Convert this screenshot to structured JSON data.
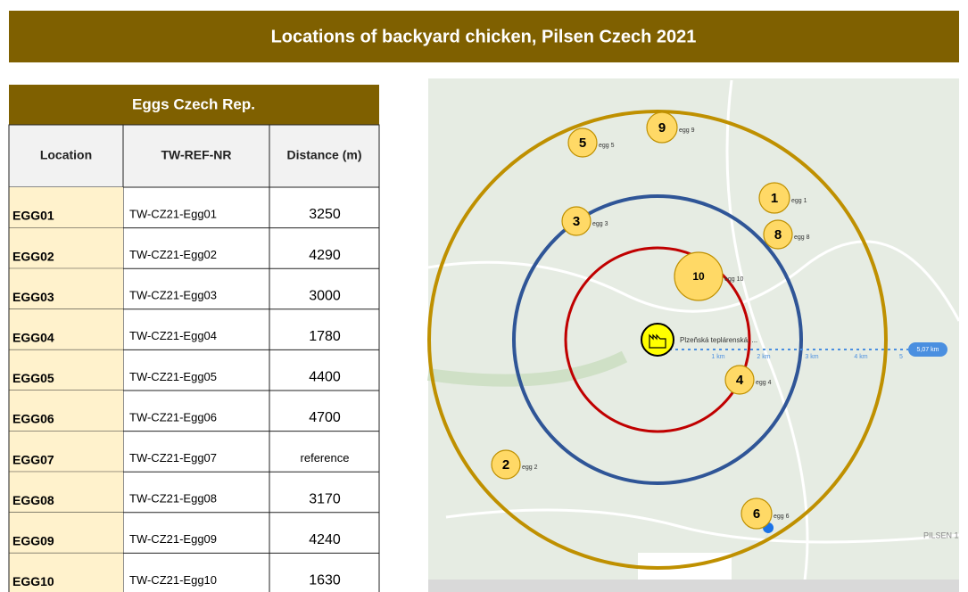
{
  "header": {
    "title": "Locations of backyard chicken, Pilsen Czech  2021"
  },
  "table": {
    "title": "Eggs  Czech Rep.",
    "columns": [
      "Location",
      "TW-REF-NR",
      "Distance (m)"
    ],
    "rows": [
      [
        "EGG01",
        "TW-CZ21-Egg01",
        "3250"
      ],
      [
        "EGG02",
        "TW-CZ21-Egg02",
        "4290"
      ],
      [
        "EGG03",
        "TW-CZ21-Egg03",
        "3000"
      ],
      [
        "EGG04",
        "TW-CZ21-Egg04",
        "1780"
      ],
      [
        "EGG05",
        "TW-CZ21-Egg05",
        "4400"
      ],
      [
        "EGG06",
        "TW-CZ21-Egg06",
        "4700"
      ],
      [
        "EGG07",
        "TW-CZ21-Egg07",
        "reference"
      ],
      [
        "EGG08",
        "TW-CZ21-Egg08",
        "3170"
      ],
      [
        "EGG09",
        "TW-CZ21-Egg09",
        "4240"
      ],
      [
        "EGG10",
        "TW-CZ21-Egg10",
        "1630"
      ]
    ]
  },
  "map": {
    "markers": [
      {
        "number": "1",
        "label": "egg 1"
      },
      {
        "number": "2",
        "label": "egg 2"
      },
      {
        "number": "3",
        "label": "egg 3"
      },
      {
        "number": "4",
        "label": "egg 4"
      },
      {
        "number": "5",
        "label": "egg 5"
      },
      {
        "number": "6",
        "label": "egg 6"
      },
      {
        "number": "8",
        "label": "egg 8"
      },
      {
        "number": "9",
        "label": "egg 9"
      },
      {
        "number": "10",
        "label": "egg 10"
      }
    ],
    "site_label": "Plzeňská teplárenská, ...",
    "scale": [
      "1 km",
      "2 km",
      "3 km",
      "4 km",
      "5",
      "5,07 km"
    ],
    "place": "PILSEN 1"
  }
}
